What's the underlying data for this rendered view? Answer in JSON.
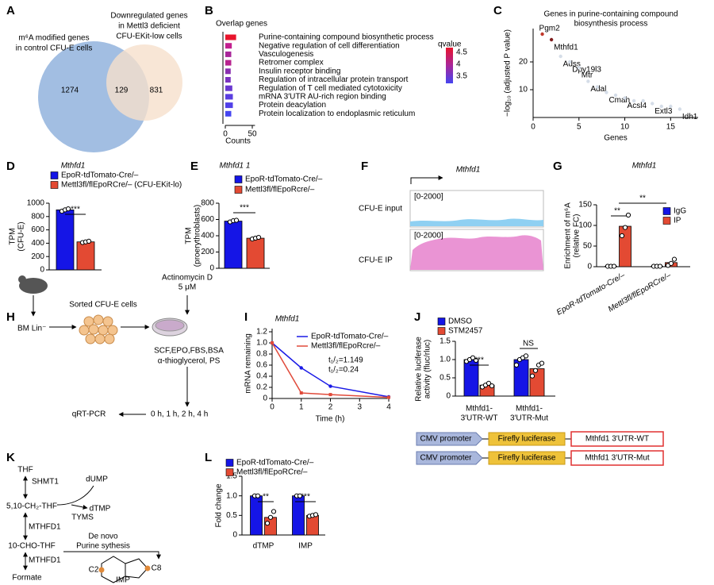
{
  "panels": {
    "A": {
      "letter": "A",
      "left_label": [
        "m⁶A modified genes",
        "in control CFU-E cells"
      ],
      "right_label": [
        "Downregulated genes",
        "in Mettl3 deficient",
        "CFU-EKit-low cells"
      ],
      "counts": [
        1274,
        129,
        831
      ],
      "colors": [
        "#9dbbe0",
        "#f6e0cc"
      ]
    },
    "B": {
      "letter": "B",
      "title": "Overlap genes",
      "terms": [
        "Purine-containing compound biosynthetic process",
        "Negative regulation of cell differentiation",
        "Vasculogenesis",
        "Retromer complex",
        "Insulin receptor binding",
        "Regulation of intracellular protein transport",
        "Regulation of T cell mediated cytotoxicity",
        "mRNA 3′UTR AU-rich region binding",
        "Protein deacylation",
        "Protein localization to endoplasmic reticulum"
      ],
      "values": [
        20,
        12,
        11,
        11,
        10,
        10,
        13,
        14,
        14,
        11
      ],
      "colors": [
        "#e8142c",
        "#c2208f",
        "#a8269a",
        "#b8238f",
        "#8a2fb0",
        "#7b33c0",
        "#6a38d0",
        "#5a3ee0",
        "#5140e8",
        "#4545f0"
      ],
      "highlight_color": "#d7191c",
      "xlim": [
        0,
        55
      ],
      "xticks": [
        0,
        50
      ],
      "xlabel": "Counts",
      "colorbar": {
        "title": "qvalue",
        "lim": [
          3.2,
          4.7
        ],
        "ticks": [
          4.5,
          4,
          3.5
        ],
        "colors": [
          "#e8142c",
          "#a8269a",
          "#4545f0"
        ]
      }
    },
    "C": {
      "letter": "C",
      "title": [
        "Genes in purine-containing compound",
        "biosynthesis process"
      ],
      "xlabel": "Genes",
      "ylabel": "−log₁₀ (adjusted P value)",
      "x": [
        1,
        2,
        3,
        4,
        5,
        6,
        7,
        8,
        9,
        10,
        11,
        12,
        13,
        14,
        15,
        16
      ],
      "y": [
        30,
        28,
        22,
        20,
        18,
        13,
        11,
        9,
        8,
        7,
        6,
        6,
        5,
        4,
        4,
        3
      ],
      "labels": [
        "Pgm2",
        "Mthfd1",
        "Adss",
        "Dpy19l3",
        "Mtr",
        "Adal",
        null,
        "Cmah",
        null,
        "Acsl4",
        null,
        null,
        "Extl3",
        null,
        null,
        "Idh1"
      ],
      "colors": [
        "#c0392b",
        "#7f1d1d",
        "#d5dde8",
        "#d5dde8",
        "#d5dde8",
        "#d5dde8",
        "#d5dde8",
        "#d5dde8",
        "#d5dde8",
        "#d5dde8",
        "#d5dde8",
        "#d5dde8",
        "#d5dde8",
        "#d5dde8",
        "#d5dde8",
        "#d5dde8"
      ],
      "xlim": [
        0,
        18
      ],
      "ylim": [
        0,
        32
      ],
      "xticks": [
        0,
        5,
        10,
        15
      ],
      "yticks": [
        10,
        20
      ]
    },
    "D": {
      "letter": "D",
      "title": "Mthfd1",
      "ylabel": [
        "TPM",
        "(CFU-E)"
      ],
      "ylim": [
        0,
        1000
      ],
      "yticks": [
        0,
        200,
        400,
        600,
        800,
        1000
      ],
      "series": [
        {
          "name": "EpoR-tdTomato-Cre/–",
          "color": "#1515e6",
          "values": [
            900
          ],
          "points": [
            [
              880,
              900,
              915
            ]
          ]
        },
        {
          "name": "Mettl3fl/flEpoRCre/– (CFU-EKit-lo)",
          "color": "#e34a33",
          "values": [
            420
          ],
          "points": [
            [
              410,
              420,
              430
            ]
          ]
        }
      ],
      "significance": [
        "***"
      ]
    },
    "E": {
      "letter": "E",
      "title": "Mthfd1 1",
      "ylabel": [
        "TPM",
        "(proerythroblasts)"
      ],
      "ylim": [
        0,
        800
      ],
      "yticks": [
        0,
        200,
        400,
        600,
        800
      ],
      "series": [
        {
          "name": "EpoR-tdTomato-Cre/–",
          "color": "#1515e6",
          "values": [
            580
          ],
          "points": [
            [
              570,
              585,
              590
            ]
          ]
        },
        {
          "name": "Mettl3fl/flEpoRcre/–",
          "color": "#e34a33",
          "values": [
            370
          ],
          "points": [
            [
              360,
              370,
              380
            ]
          ]
        }
      ],
      "significance": [
        "***"
      ]
    },
    "F": {
      "letter": "F",
      "title": "Mthfd1",
      "tracks": [
        {
          "label": "CFU-E input",
          "range": "[0-2000]",
          "color": "#8fd0f2"
        },
        {
          "label": "CFU-E IP",
          "range": "[0-2000]",
          "color": "#ea94d4"
        }
      ]
    },
    "G": {
      "letter": "G",
      "title": "Mthfd1",
      "ylabel": [
        "Enrichment of m⁶A",
        "(relative FC)"
      ],
      "ylim": [
        0,
        150
      ],
      "yticks": [
        0,
        50,
        100,
        150
      ],
      "categories": [
        "EpoR-tdTomato-Cre/–",
        "Mettl3fl/flEpoRCre/–"
      ],
      "series": [
        {
          "name": "IgG",
          "color": "#1515e6",
          "values": [
            1,
            1
          ],
          "points": [
            [
              1,
              1,
              1
            ],
            [
              1,
              1,
              1
            ]
          ]
        },
        {
          "name": "IP",
          "color": "#e34a33",
          "values": [
            98,
            10
          ],
          "points": [
            [
              75,
              95,
              125
            ],
            [
              3,
              8,
              18
            ]
          ]
        }
      ],
      "significance": [
        "**",
        "**"
      ]
    },
    "H": {
      "letter": "H",
      "source": "BM Lin⁻",
      "sorted": "Sorted CFU-E cells",
      "drug": [
        "Actinomycin D",
        "5 μM"
      ],
      "medium": [
        "SCF,EPO,FBS,BSA",
        "α-thioglycerol, PS"
      ],
      "assay": "qRT-PCR",
      "times": "0 h, 1 h, 2 h, 4 h"
    },
    "I": {
      "letter": "I",
      "title": "Mthfd1",
      "x": [
        0,
        1,
        2,
        4
      ],
      "series": [
        {
          "name": "EpoR-tdTomato-Cre/–",
          "color": "#1a1ae6",
          "values": [
            1,
            0.55,
            0.22,
            0.03
          ]
        },
        {
          "name": "Mettl3fl/flEpoRcre/–",
          "color": "#e04a3a",
          "values": [
            1,
            0.1,
            0.07,
            0.02
          ]
        }
      ],
      "annotations": [
        "t₁/₂=1.149",
        "t₁/₂=0.24"
      ],
      "xlim": [
        0,
        4
      ],
      "ylim": [
        0,
        1.2
      ],
      "xticks": [
        0,
        1,
        2,
        3,
        4
      ],
      "yticks": [
        0,
        0.2,
        0.4,
        0.6,
        0.8,
        {
          "value": 1,
          "label": "1.0"
        },
        1.2
      ],
      "xlabel": "Time (h)",
      "ylabel": "mRNA remaining"
    },
    "J": {
      "letter": "J",
      "ylabel": [
        "Relative luciferase",
        "activity (fluc/rluc)"
      ],
      "ylim": [
        0,
        1.5
      ],
      "yticks": [
        0,
        0.5,
        {
          "value": 1,
          "label": "1.0"
        },
        1.5
      ],
      "categories": [
        [
          "Mthfd1-",
          "3′UTR-WT"
        ],
        [
          "Mthfd1-",
          "3′UTR-Mut"
        ]
      ],
      "series": [
        {
          "name": "DMSO",
          "color": "#1515e6",
          "values": [
            1,
            1
          ],
          "points": [
            [
              0.95,
              1.0,
              1.05,
              0.98
            ],
            [
              0.85,
              1.0,
              1.05,
              1.1
            ]
          ]
        },
        {
          "name": "STM2457",
          "color": "#e34a33",
          "values": [
            0.3,
            0.75
          ],
          "points": [
            [
              0.25,
              0.3,
              0.35,
              0.28
            ],
            [
              0.55,
              0.7,
              0.85,
              0.9
            ]
          ]
        }
      ],
      "significance": [
        "***",
        "NS"
      ],
      "constructs": [
        {
          "promoter": "CMV promoter",
          "reporter": "Firefly luciferase",
          "utr": "Mthfd1 3′UTR-WT"
        },
        {
          "promoter": "CMV promoter",
          "reporter": "Firefly luciferase",
          "utr": "Mthfd1 3′UTR-Mut"
        }
      ]
    },
    "K": {
      "letter": "K",
      "thf": "THF",
      "shmt1": "SHMT1",
      "dump": "dUMP",
      "ch2thf": "5,10-CH₂-THF",
      "dtmp": "dTMP",
      "tyms": "TYMS",
      "mthfd1_a": "MTHFD1",
      "chothf": "10-CHO-THF",
      "denovo": [
        "De novo",
        "Purine sythesis"
      ],
      "mthfd1_b": "MTHFD1",
      "formate": "Formate",
      "c2": "C2",
      "c8": "C8",
      "imp": "IMP"
    },
    "L": {
      "letter": "L",
      "ylabel": "Fold change",
      "ylim": [
        0,
        1.5
      ],
      "yticks": [
        0,
        0.5,
        {
          "value": 1,
          "label": "1.0"
        },
        1.5
      ],
      "categories": [
        "dTMP",
        "IMP"
      ],
      "series": [
        {
          "name": "EpoR-tdTomato-Cre/–",
          "color": "#1515e6",
          "values": [
            1,
            1
          ],
          "points": [
            [
              1,
              1
            ],
            [
              1,
              1
            ]
          ]
        },
        {
          "name": "Mettl3fl/flEpoRCre/–",
          "color": "#e34a33",
          "values": [
            0.45,
            0.5
          ],
          "points": [
            [
              0.3,
              0.45,
              0.6
            ],
            [
              0.48,
              0.5,
              0.52
            ]
          ]
        }
      ],
      "significance": [
        "**",
        "***"
      ]
    }
  }
}
